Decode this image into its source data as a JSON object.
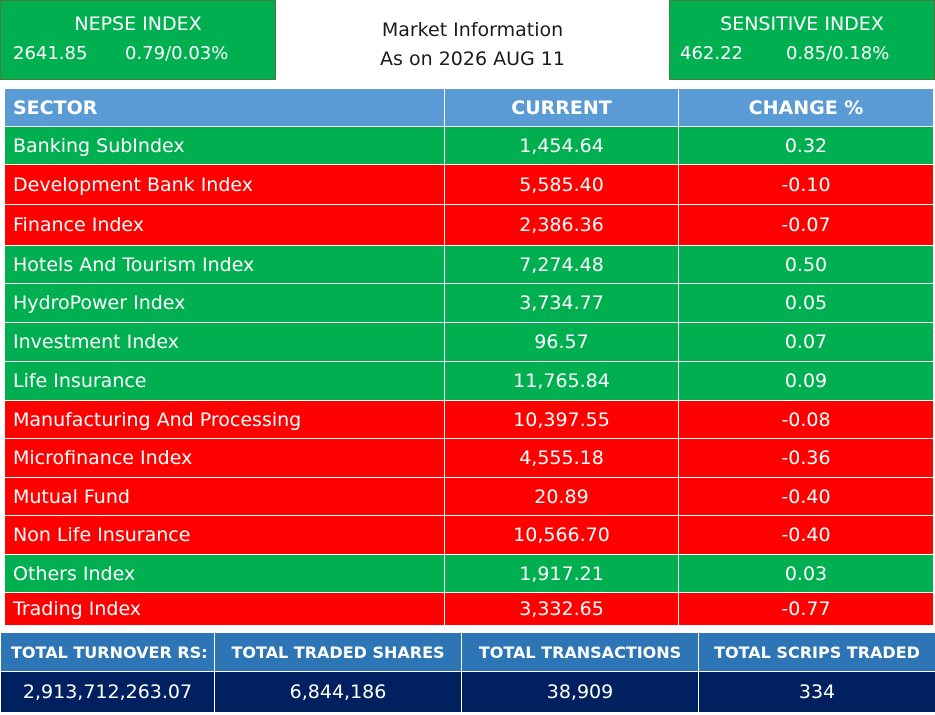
{
  "nepse": {
    "title": "NEPSE INDEX",
    "value": "2641.85",
    "change": "0.79/0.03%"
  },
  "sensitive": {
    "title": "SENSITIVE INDEX",
    "value": "462.22",
    "change": "0.85/0.18%"
  },
  "market": {
    "line1": "Market Information",
    "line2": "As on 2026 AUG 11"
  },
  "colors": {
    "up": "#00b050",
    "down": "#ff0000",
    "header": "#5b9bd5",
    "summary_header": "#2e75b6",
    "summary_value": "#002060"
  },
  "table": {
    "headers": [
      "SECTOR",
      "CURRENT",
      "CHANGE %"
    ],
    "rows": [
      {
        "sector": "Banking SubIndex",
        "current": "1,454.64",
        "change": "0.32",
        "trend": "up"
      },
      {
        "sector": "Development Bank Index",
        "current": "5,585.40",
        "change": "-0.10",
        "trend": "down"
      },
      {
        "sector": "Finance Index",
        "current": "2,386.36",
        "change": "-0.07",
        "trend": "down"
      },
      {
        "sector": "Hotels And Tourism Index",
        "current": "7,274.48",
        "change": "0.50",
        "trend": "up"
      },
      {
        "sector": "HydroPower Index",
        "current": "3,734.77",
        "change": "0.05",
        "trend": "up"
      },
      {
        "sector": "Investment Index",
        "current": "96.57",
        "change": "0.07",
        "trend": "up"
      },
      {
        "sector": "Life Insurance",
        "current": "11,765.84",
        "change": "0.09",
        "trend": "up"
      },
      {
        "sector": "Manufacturing And Processing",
        "current": "10,397.55",
        "change": "-0.08",
        "trend": "down"
      },
      {
        "sector": "Microfinance Index",
        "current": "4,555.18",
        "change": "-0.36",
        "trend": "down"
      },
      {
        "sector": "Mutual Fund",
        "current": "20.89",
        "change": "-0.40",
        "trend": "down"
      },
      {
        "sector": "Non Life Insurance",
        "current": "10,566.70",
        "change": "-0.40",
        "trend": "down"
      },
      {
        "sector": "Others Index",
        "current": "1,917.21",
        "change": "0.03",
        "trend": "up"
      },
      {
        "sector": "Trading Index",
        "current": "3,332.65",
        "change": "-0.77",
        "trend": "down"
      }
    ]
  },
  "summary": {
    "headers": [
      "TOTAL TURNOVER RS:",
      "TOTAL TRADED SHARES",
      "TOTAL TRANSACTIONS",
      "TOTAL SCRIPS TRADED"
    ],
    "values": [
      "2,913,712,263.07",
      "6,844,186",
      "38,909",
      "334"
    ]
  }
}
